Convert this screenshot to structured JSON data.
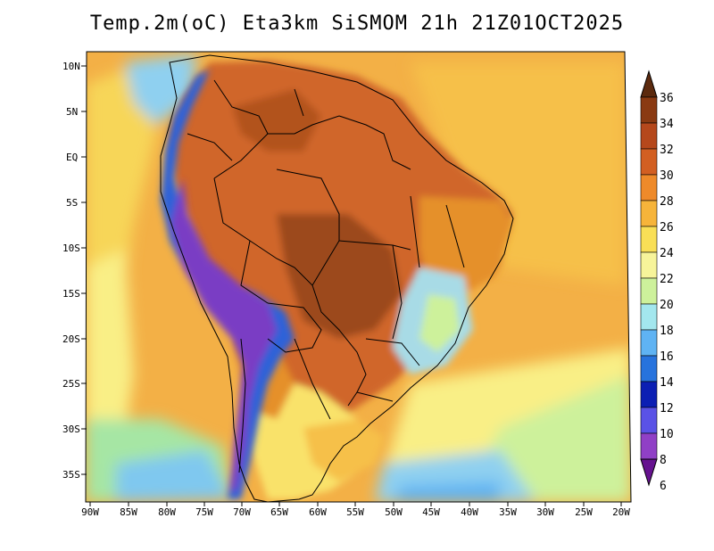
{
  "title": "Temp.2m(oC) Eta3km SiSMOM 21h 21Z01OCT2025",
  "lat_labels": [
    "10N",
    "5N",
    "EQ",
    "5S",
    "10S",
    "15S",
    "20S",
    "25S",
    "30S",
    "35S"
  ],
  "lon_labels": [
    "90W",
    "85W",
    "80W",
    "75W",
    "70W",
    "65W",
    "60W",
    "55W",
    "50W",
    "45W",
    "40W",
    "35W",
    "30W",
    "25W",
    "20W"
  ],
  "colorbar": {
    "ticks": [
      "36",
      "34",
      "32",
      "30",
      "28",
      "26",
      "24",
      "22",
      "20",
      "18",
      "16",
      "14",
      "12",
      "10",
      "8",
      "6"
    ],
    "colors": [
      "#5c2a0e",
      "#8a3a12",
      "#b5481c",
      "#d25f22",
      "#ee8a2a",
      "#f6b43a",
      "#f9df56",
      "#f7f49a",
      "#cdf19b",
      "#a3e7ee",
      "#5fb3f3",
      "#2773dd",
      "#0c1fb3",
      "#5a52e6",
      "#9040c6",
      "#66128f"
    ]
  },
  "legend_colors": {
    "ocean": "#f2ae4a",
    "land_hot": "#cf6b2c",
    "land_very_hot": "#a9531e",
    "andes_cold": "#7a3ec4",
    "south_cool": "#f9ed7c"
  }
}
